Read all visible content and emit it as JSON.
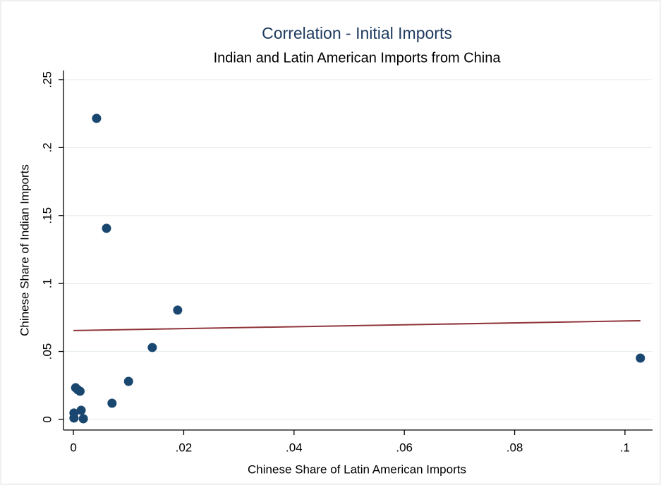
{
  "chart_data": {
    "type": "scatter",
    "title": "Correlation - Initial Imports",
    "subtitle": "Indian and Latin American Imports from China",
    "x_label": "Chinese Share of Latin American Imports",
    "y_label": "Chinese Share of Indian Imports",
    "xlim": [
      -0.0018,
      0.105
    ],
    "ylim": [
      -0.0078,
      0.2567
    ],
    "xticks": [
      0,
      {
        "value": 0.02,
        "label": ".02"
      },
      {
        "value": 0.04,
        "label": ".04"
      },
      {
        "value": 0.06,
        "label": ".06"
      },
      {
        "value": 0.08,
        "label": ".08"
      },
      {
        "value": 0.1,
        "label": ".1"
      }
    ],
    "yticks": [
      0,
      {
        "value": 0.05,
        "label": ".05"
      },
      {
        "value": 0.1,
        "label": ".1"
      },
      {
        "value": 0.15,
        "label": ".15"
      },
      {
        "value": 0.2,
        "label": ".2"
      },
      {
        "value": 0.25,
        "label": ".25"
      }
    ],
    "grid": true,
    "series": [
      {
        "color": "#1a476f",
        "x": [
          0.0042,
          0.006,
          0.0189,
          0.0143,
          0.01,
          0.007,
          0.0004,
          0.0008,
          0.0012,
          0.0001,
          0.0014,
          0.0001,
          0.0018,
          0.1028
        ],
        "values": [
          0.2215,
          0.1406,
          0.0804,
          0.0529,
          0.028,
          0.0119,
          0.0233,
          0.0218,
          0.0207,
          0.0047,
          0.0067,
          0.001,
          0.0005,
          0.0451
        ]
      },
      {
        "type": "line",
        "color": "#90353b",
        "x": [
          0,
          0.1028
        ],
        "values": [
          0.0654,
          0.0726
        ]
      }
    ]
  }
}
